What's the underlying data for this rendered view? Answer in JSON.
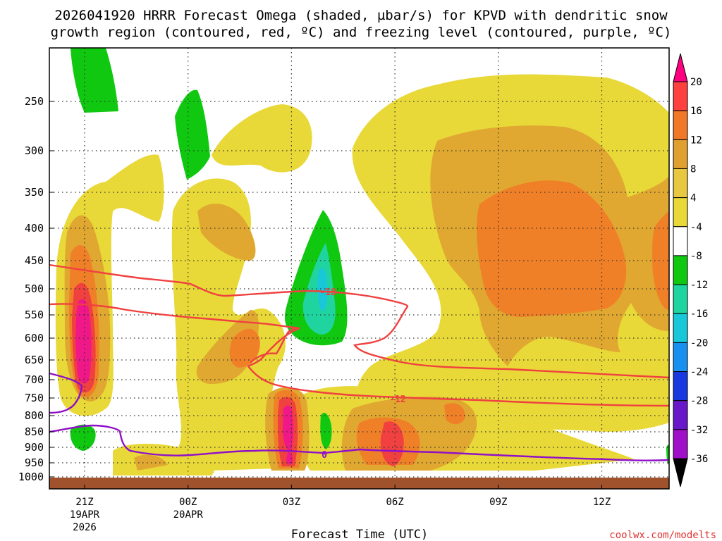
{
  "chart_data": {
    "type": "time-height contour",
    "title_line1": "2026041920 HRRR Forecast Omega (shaded, µbar/s) for KPVD with dendritic snow",
    "title_line2": "growth region (contoured, red, ºC) and freezing level (contoured, purple, ºC)",
    "xlabel": "Forecast Time (UTC)",
    "ylabel": "",
    "credit": "coolwx.com/modelts",
    "x_ticks": [
      {
        "label": "21Z",
        "sub1": "19APR",
        "sub2": "2026",
        "hour": 0
      },
      {
        "label": "00Z",
        "sub1": "20APR",
        "sub2": "",
        "hour": 3
      },
      {
        "label": "03Z",
        "sub1": "",
        "sub2": "",
        "hour": 6
      },
      {
        "label": "06Z",
        "sub1": "",
        "sub2": "",
        "hour": 9
      },
      {
        "label": "09Z",
        "sub1": "",
        "sub2": "",
        "hour": 12
      },
      {
        "label": "12Z",
        "sub1": "",
        "sub2": "",
        "hour": 15
      }
    ],
    "y_ticks": [
      "250",
      "300",
      "350",
      "400",
      "450",
      "500",
      "550",
      "600",
      "650",
      "700",
      "750",
      "800",
      "850",
      "900",
      "950",
      "1000"
    ],
    "colorbar_labels": [
      "20",
      "16",
      "12",
      "8",
      "4",
      "-4",
      "-8",
      "-12",
      "-16",
      "-20",
      "-24",
      "-28",
      "-32",
      "-36"
    ],
    "colorbar_colors": [
      "#ff0080",
      "#ff4040",
      "#f07828",
      "#e0a030",
      "#e8c840",
      "#e8d838",
      "#ffffff",
      "#10c810",
      "#20d4a0",
      "#18c8d8",
      "#1890f0",
      "#1838e0",
      "#6818c8",
      "#a010c8",
      "#a8a8a8",
      "#000000"
    ],
    "contour_labels": {
      "dgz_upper": "-18",
      "dgz_lower": "-12",
      "freezing": "0"
    },
    "series_colors": {
      "dgz": "#f04040",
      "freezing": "#9010c8",
      "ground": "#a0522d"
    }
  }
}
